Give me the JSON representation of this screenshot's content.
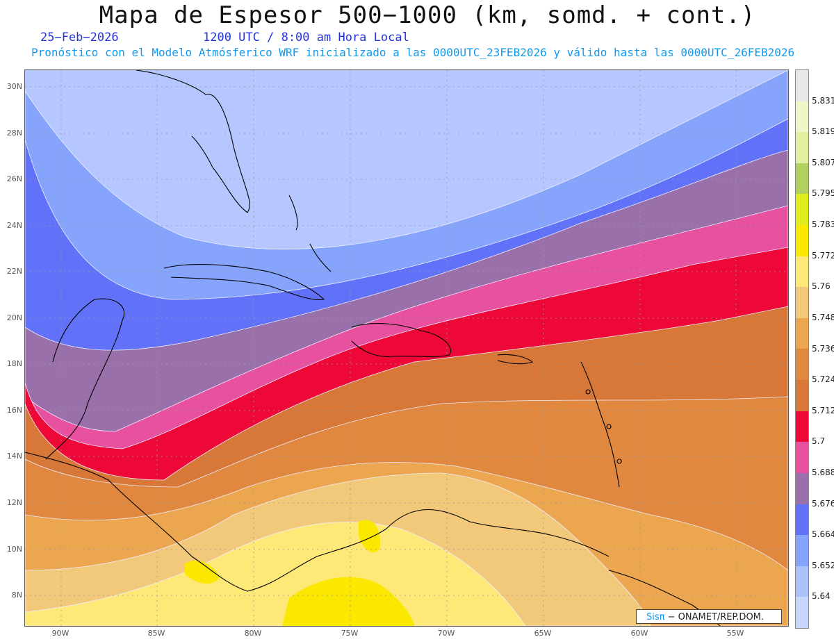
{
  "title": "Mapa de Espesor 500−1000 (km, somd. + cont.)",
  "date": "25−Feb−2026",
  "time": "1200 UTC / 8:00 am Hora Local",
  "subtitle": "Pronóstico con el Modelo Atmósferico WRF inicializado a las 0000UTC_23FEB2026 y válido hasta las  0000UTC_26FEB2026",
  "credit": {
    "brand": "Sisπ",
    "text": "− ONAMET/REP.DOM."
  },
  "lat_labels": [
    "30N",
    "28N",
    "26N",
    "24N",
    "22N",
    "20N",
    "18N",
    "16N",
    "14N",
    "12N",
    "10N",
    "8N"
  ],
  "lon_labels": [
    "90W",
    "85W",
    "80W",
    "75W",
    "70W",
    "65W",
    "60W",
    "55W"
  ],
  "colorbar": {
    "labels": [
      "5.831",
      "5.819",
      "5.807",
      "5.795",
      "5.783",
      "5.772",
      "5.76",
      "5.748",
      "5.736",
      "5.724",
      "5.712",
      "5.7",
      "5.688",
      "5.676",
      "5.664",
      "5.652",
      "5.64"
    ],
    "colors_top_to_bottom": [
      "#e8e8e8",
      "#f0f6c8",
      "#e0f0a0",
      "#b2d060",
      "#e0ec20",
      "#fae800",
      "#fde878",
      "#f2c87a",
      "#eda650",
      "#e08840",
      "#d87838",
      "#ee0838",
      "#e850a0",
      "#9a70aa",
      "#6272f8",
      "#86a4fc",
      "#acc0fc",
      "#c8d6fe"
    ]
  }
}
